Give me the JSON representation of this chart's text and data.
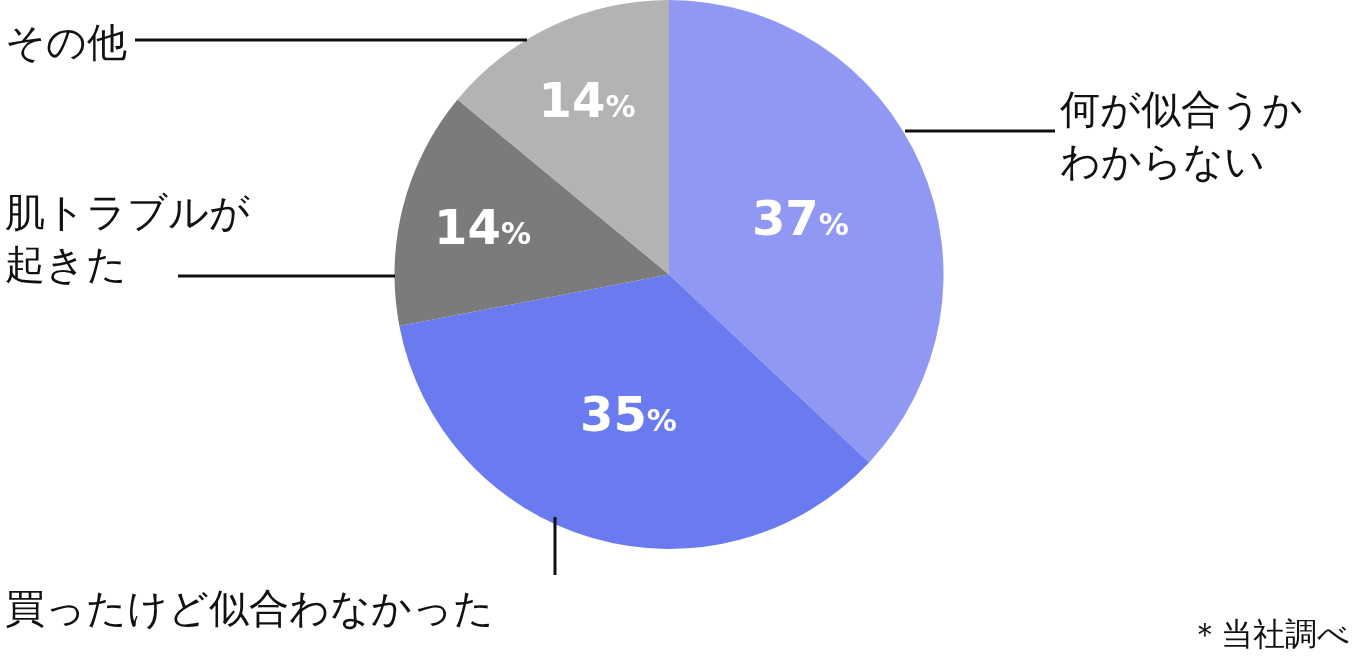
{
  "chart_data": {
    "type": "pie",
    "categories": [
      "何が似合うかわからない",
      "買ったけど似合わなかった",
      "肌トラブルが起きた",
      "その他"
    ],
    "values": [
      37,
      35,
      14,
      14
    ],
    "value_labels": [
      "37%",
      "35%",
      "14%",
      "14%"
    ],
    "colors": [
      "#9098f3",
      "#6a7bef",
      "#7b7b7b",
      "#b3b3b3"
    ],
    "legend": false,
    "annotations": [
      "＊当社調べ"
    ]
  }
}
